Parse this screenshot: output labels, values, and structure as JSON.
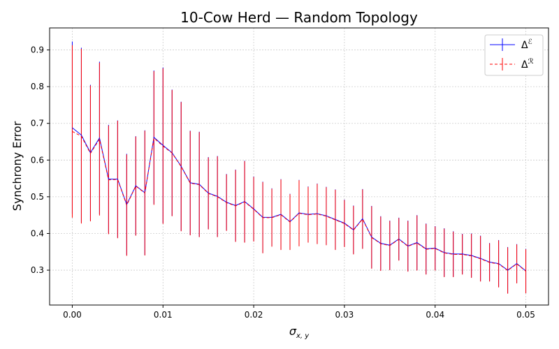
{
  "chart_data": {
    "type": "line",
    "title": "10-Cow Herd — Random Topology",
    "xlabel": "σ",
    "xlabel_sub": "x, y",
    "ylabel": "Synchrony Error",
    "xlim": [
      -0.0025,
      0.0525
    ],
    "ylim": [
      0.205,
      0.96
    ],
    "xticks": [
      0.0,
      0.01,
      0.02,
      0.03,
      0.04,
      0.05
    ],
    "xtick_labels": [
      "0.00",
      "0.01",
      "0.02",
      "0.03",
      "0.04",
      "0.05"
    ],
    "yticks": [
      0.3,
      0.4,
      0.5,
      0.6,
      0.7,
      0.8,
      0.9
    ],
    "ytick_labels": [
      "0.3",
      "0.4",
      "0.5",
      "0.6",
      "0.7",
      "0.8",
      "0.9"
    ],
    "grid": true,
    "legend_position": "top-right",
    "x": [
      0.0,
      0.001,
      0.002,
      0.003,
      0.004,
      0.005,
      0.006,
      0.007,
      0.008,
      0.009,
      0.01,
      0.011,
      0.012,
      0.013,
      0.014,
      0.015,
      0.016,
      0.017,
      0.018,
      0.019,
      0.02,
      0.021,
      0.022,
      0.023,
      0.024,
      0.025,
      0.026,
      0.027,
      0.028,
      0.029,
      0.03,
      0.031,
      0.032,
      0.033,
      0.034,
      0.035,
      0.036,
      0.037,
      0.038,
      0.039,
      0.04,
      0.041,
      0.042,
      0.043,
      0.044,
      0.045,
      0.046,
      0.047,
      0.048,
      0.049,
      0.05
    ],
    "series": [
      {
        "name": "Δ",
        "name_sup": "ℰ",
        "color": "#0000ff",
        "style": "solid",
        "values": [
          0.688,
          0.668,
          0.62,
          0.66,
          0.548,
          0.548,
          0.479,
          0.53,
          0.511,
          0.662,
          0.64,
          0.62,
          0.583,
          0.538,
          0.534,
          0.51,
          0.501,
          0.485,
          0.476,
          0.487,
          0.467,
          0.444,
          0.444,
          0.452,
          0.432,
          0.456,
          0.452,
          0.454,
          0.448,
          0.438,
          0.428,
          0.41,
          0.44,
          0.39,
          0.373,
          0.368,
          0.385,
          0.366,
          0.375,
          0.358,
          0.36,
          0.348,
          0.344,
          0.344,
          0.34,
          0.332,
          0.322,
          0.318,
          0.3,
          0.318,
          0.298
        ],
        "errors": [
          0.235,
          0.238,
          0.185,
          0.208,
          0.148,
          0.16,
          0.138,
          0.135,
          0.17,
          0.182,
          0.212,
          0.172,
          0.176,
          0.142,
          0.143,
          0.098,
          0.11,
          0.077,
          0.098,
          0.111,
          0.088,
          0.097,
          0.079,
          0.096,
          0.076,
          0.09,
          0.076,
          0.082,
          0.079,
          0.082,
          0.064,
          0.066,
          0.081,
          0.085,
          0.074,
          0.067,
          0.058,
          0.069,
          0.075,
          0.069,
          0.06,
          0.066,
          0.062,
          0.055,
          0.06,
          0.062,
          0.052,
          0.064,
          0.063,
          0.053,
          0.06
        ]
      },
      {
        "name": "Δ",
        "name_sup": "ℛ",
        "color": "#ff0000",
        "style": "dashed",
        "values": [
          0.678,
          0.665,
          0.618,
          0.657,
          0.546,
          0.547,
          0.477,
          0.529,
          0.51,
          0.66,
          0.638,
          0.619,
          0.582,
          0.537,
          0.533,
          0.509,
          0.5,
          0.484,
          0.475,
          0.486,
          0.466,
          0.443,
          0.443,
          0.451,
          0.431,
          0.455,
          0.451,
          0.453,
          0.447,
          0.437,
          0.427,
          0.409,
          0.439,
          0.389,
          0.372,
          0.367,
          0.384,
          0.365,
          0.374,
          0.357,
          0.359,
          0.347,
          0.343,
          0.343,
          0.339,
          0.331,
          0.321,
          0.317,
          0.299,
          0.317,
          0.297
        ],
        "errors": [
          0.235,
          0.238,
          0.185,
          0.208,
          0.148,
          0.16,
          0.138,
          0.135,
          0.17,
          0.182,
          0.212,
          0.172,
          0.176,
          0.142,
          0.143,
          0.098,
          0.11,
          0.077,
          0.098,
          0.111,
          0.088,
          0.097,
          0.079,
          0.096,
          0.076,
          0.09,
          0.076,
          0.082,
          0.079,
          0.082,
          0.064,
          0.066,
          0.081,
          0.085,
          0.074,
          0.067,
          0.058,
          0.069,
          0.075,
          0.069,
          0.06,
          0.066,
          0.062,
          0.055,
          0.06,
          0.062,
          0.052,
          0.064,
          0.063,
          0.053,
          0.06
        ]
      }
    ]
  }
}
